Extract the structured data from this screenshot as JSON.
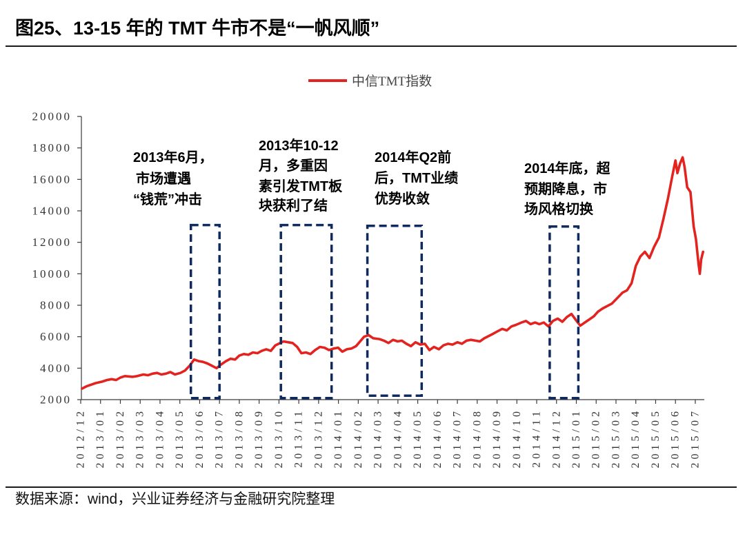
{
  "title": "图25、13-15 年的 TMT 牛市不是“一帆风顺”",
  "source": "数据来源：wind，兴业证券经济与金融研究院整理",
  "colors": {
    "series": "#e3231f",
    "box": "#0f2a5f",
    "axis": "#3a3a3a"
  },
  "chart_data": {
    "type": "line",
    "title": "",
    "xlabel": "",
    "ylabel": "",
    "legend_position": "top-center",
    "ylim": [
      2000,
      20000
    ],
    "yticks": [
      20000,
      18000,
      16000,
      14000,
      12000,
      10000,
      8000,
      6000,
      4000,
      2000
    ],
    "xticks": [
      "2012/12",
      "2013/01",
      "2013/02",
      "2013/03",
      "2013/04",
      "2013/05",
      "2013/06",
      "2013/07",
      "2013/08",
      "2013/09",
      "2013/10",
      "2013/11",
      "2013/12",
      "2014/01",
      "2014/02",
      "2014/03",
      "2014/04",
      "2014/05",
      "2014/06",
      "2014/07",
      "2014/08",
      "2014/09",
      "2014/10",
      "2014/11",
      "2014/12",
      "2015/01",
      "2015/02",
      "2015/03",
      "2015/04",
      "2015/05",
      "2015/06",
      "2015/07"
    ],
    "series": [
      {
        "name": "中信TMT指数",
        "points": [
          [
            "2012-12-03",
            2700
          ],
          [
            "2012-12-10",
            2850
          ],
          [
            "2012-12-17",
            2950
          ],
          [
            "2012-12-24",
            3050
          ],
          [
            "2013-01-04",
            3150
          ],
          [
            "2013-01-11",
            3250
          ],
          [
            "2013-01-18",
            3300
          ],
          [
            "2013-01-25",
            3250
          ],
          [
            "2013-02-01",
            3400
          ],
          [
            "2013-02-08",
            3500
          ],
          [
            "2013-02-20",
            3450
          ],
          [
            "2013-02-27",
            3500
          ],
          [
            "2013-03-06",
            3600
          ],
          [
            "2013-03-13",
            3550
          ],
          [
            "2013-03-20",
            3650
          ],
          [
            "2013-03-27",
            3700
          ],
          [
            "2013-04-03",
            3600
          ],
          [
            "2013-04-10",
            3650
          ],
          [
            "2013-04-17",
            3750
          ],
          [
            "2013-04-24",
            3600
          ],
          [
            "2013-05-02",
            3700
          ],
          [
            "2013-05-09",
            3850
          ],
          [
            "2013-05-16",
            4150
          ],
          [
            "2013-05-23",
            4550
          ],
          [
            "2013-05-30",
            4450
          ],
          [
            "2013-06-06",
            4400
          ],
          [
            "2013-06-13",
            4300
          ],
          [
            "2013-06-20",
            4150
          ],
          [
            "2013-06-27",
            4000
          ],
          [
            "2013-07-04",
            4250
          ],
          [
            "2013-07-11",
            4450
          ],
          [
            "2013-07-18",
            4600
          ],
          [
            "2013-07-25",
            4550
          ],
          [
            "2013-08-01",
            4800
          ],
          [
            "2013-08-08",
            4900
          ],
          [
            "2013-08-15",
            4850
          ],
          [
            "2013-08-22",
            5000
          ],
          [
            "2013-08-29",
            4950
          ],
          [
            "2013-09-05",
            5100
          ],
          [
            "2013-09-12",
            5200
          ],
          [
            "2013-09-19",
            5100
          ],
          [
            "2013-09-26",
            5450
          ],
          [
            "2013-10-08",
            5700
          ],
          [
            "2013-10-15",
            5650
          ],
          [
            "2013-10-22",
            5600
          ],
          [
            "2013-10-29",
            5350
          ],
          [
            "2013-11-05",
            4950
          ],
          [
            "2013-11-12",
            5000
          ],
          [
            "2013-11-19",
            4900
          ],
          [
            "2013-11-26",
            5150
          ],
          [
            "2013-12-03",
            5350
          ],
          [
            "2013-12-10",
            5300
          ],
          [
            "2013-12-17",
            5150
          ],
          [
            "2013-12-24",
            5250
          ],
          [
            "2013-12-31",
            5300
          ],
          [
            "2014-01-07",
            5050
          ],
          [
            "2014-01-14",
            5200
          ],
          [
            "2014-01-21",
            5250
          ],
          [
            "2014-01-28",
            5400
          ],
          [
            "2014-02-10",
            6000
          ],
          [
            "2014-02-17",
            6100
          ],
          [
            "2014-02-24",
            5900
          ],
          [
            "2014-03-03",
            5850
          ],
          [
            "2014-03-10",
            5750
          ],
          [
            "2014-03-17",
            5600
          ],
          [
            "2014-03-24",
            5800
          ],
          [
            "2014-03-31",
            5700
          ],
          [
            "2014-04-07",
            5750
          ],
          [
            "2014-04-14",
            5550
          ],
          [
            "2014-04-21",
            5400
          ],
          [
            "2014-04-28",
            5650
          ],
          [
            "2014-05-05",
            5500
          ],
          [
            "2014-05-12",
            5550
          ],
          [
            "2014-05-19",
            5150
          ],
          [
            "2014-05-26",
            5350
          ],
          [
            "2014-06-03",
            5200
          ],
          [
            "2014-06-10",
            5450
          ],
          [
            "2014-06-17",
            5550
          ],
          [
            "2014-06-24",
            5500
          ],
          [
            "2014-07-01",
            5650
          ],
          [
            "2014-07-08",
            5550
          ],
          [
            "2014-07-15",
            5750
          ],
          [
            "2014-07-22",
            5800
          ],
          [
            "2014-07-29",
            5750
          ],
          [
            "2014-08-05",
            5700
          ],
          [
            "2014-08-12",
            5900
          ],
          [
            "2014-08-19",
            6050
          ],
          [
            "2014-08-26",
            6200
          ],
          [
            "2014-09-02",
            6350
          ],
          [
            "2014-09-09",
            6500
          ],
          [
            "2014-09-16",
            6400
          ],
          [
            "2014-09-23",
            6650
          ],
          [
            "2014-09-30",
            6750
          ],
          [
            "2014-10-08",
            6900
          ],
          [
            "2014-10-15",
            7000
          ],
          [
            "2014-10-22",
            6800
          ],
          [
            "2014-10-29",
            6900
          ],
          [
            "2014-11-05",
            6800
          ],
          [
            "2014-11-12",
            6900
          ],
          [
            "2014-11-19",
            6650
          ],
          [
            "2014-11-26",
            7000
          ],
          [
            "2014-12-03",
            7150
          ],
          [
            "2014-12-10",
            6950
          ],
          [
            "2014-12-17",
            7250
          ],
          [
            "2014-12-24",
            7450
          ],
          [
            "2014-12-31",
            7050
          ],
          [
            "2015-01-07",
            6700
          ],
          [
            "2015-01-14",
            6900
          ],
          [
            "2015-01-21",
            7100
          ],
          [
            "2015-01-28",
            7300
          ],
          [
            "2015-02-04",
            7600
          ],
          [
            "2015-02-11",
            7800
          ],
          [
            "2015-02-25",
            8100
          ],
          [
            "2015-03-04",
            8500
          ],
          [
            "2015-03-11",
            8800
          ],
          [
            "2015-03-18",
            8950
          ],
          [
            "2015-03-25",
            9400
          ],
          [
            "2015-04-01",
            10500
          ],
          [
            "2015-04-08",
            11100
          ],
          [
            "2015-04-15",
            11400
          ],
          [
            "2015-04-22",
            11000
          ],
          [
            "2015-04-29",
            11700
          ],
          [
            "2015-05-06",
            12300
          ],
          [
            "2015-05-13",
            13500
          ],
          [
            "2015-05-20",
            14800
          ],
          [
            "2015-05-27",
            16300
          ],
          [
            "2015-06-01",
            17200
          ],
          [
            "2015-06-04",
            16400
          ],
          [
            "2015-06-08",
            17000
          ],
          [
            "2015-06-12",
            17400
          ],
          [
            "2015-06-15",
            16800
          ],
          [
            "2015-06-19",
            15500
          ],
          [
            "2015-06-24",
            15200
          ],
          [
            "2015-06-29",
            13000
          ],
          [
            "2015-07-02",
            12200
          ],
          [
            "2015-07-06",
            10600
          ],
          [
            "2015-07-08",
            10000
          ],
          [
            "2015-07-10",
            10900
          ],
          [
            "2015-07-13",
            11400
          ]
        ]
      }
    ],
    "annotations": [
      {
        "lines": [
          "2013年6月，",
          "市场遭遇",
          "“钱荒”冲击"
        ],
        "period": [
          "2013-05-18",
          "2013-07-01"
        ],
        "box_ylim": [
          2100,
          13100
        ]
      },
      {
        "lines": [
          "2013年10-12",
          "月，多重因",
          "素引发TMT板",
          "块获利了结"
        ],
        "period": [
          "2013-10-04",
          "2013-12-21"
        ],
        "box_ylim": [
          2100,
          13100
        ]
      },
      {
        "lines": [
          "2014年Q2前",
          "后，TMT业绩",
          "优势收敛"
        ],
        "period": [
          "2014-02-15",
          "2014-05-07"
        ],
        "box_ylim": [
          2250,
          13050
        ]
      },
      {
        "lines": [
          "2014年底，超",
          "预期降息，市",
          "场风格切换"
        ],
        "period": [
          "2014-11-21",
          "2015-01-04"
        ],
        "box_ylim": [
          2100,
          13000
        ]
      }
    ]
  }
}
